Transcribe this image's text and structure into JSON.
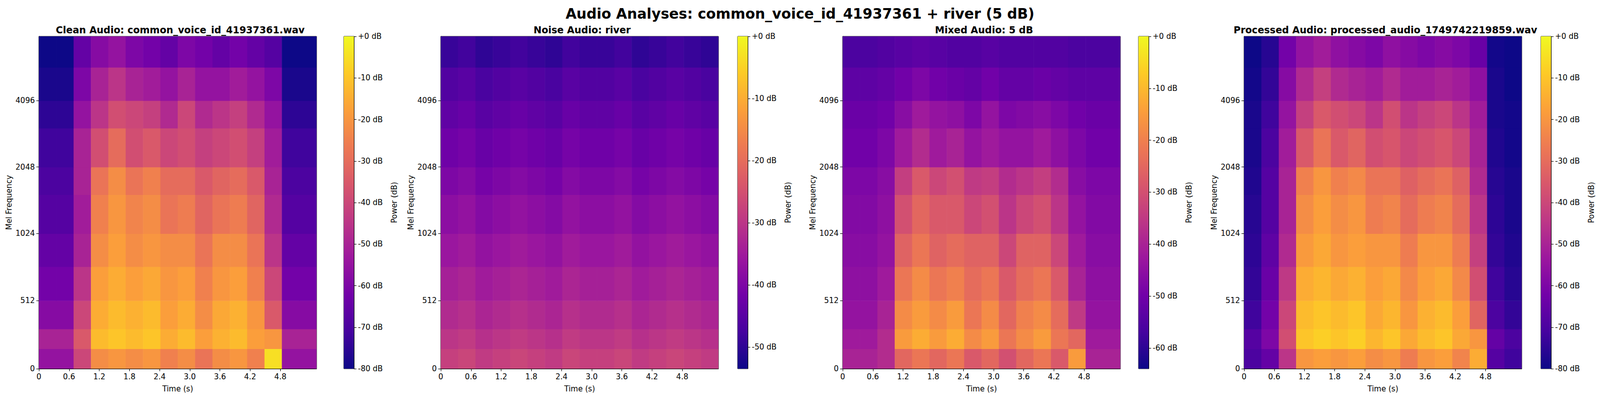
{
  "title": "Audio Analyses: common_voice_id_41937361 + river (5 dB)",
  "chart_data": [
    {
      "type": "heatmap",
      "title": "Clean Audio: common_voice_id_41937361.wav",
      "xlabel": "Time (s)",
      "ylabel": "Mel Frequency",
      "xlim": [
        0,
        5.52
      ],
      "xticks": [
        0,
        0.6,
        1.2,
        1.8,
        2.4,
        {
          "value": 3,
          "label": "3.0"
        },
        3.6,
        4.2,
        4.8
      ],
      "ylim": [
        0,
        8000
      ],
      "yticks": [
        0,
        512,
        1024,
        2048,
        4096
      ],
      "x_edges": [
        0,
        0.345,
        0.69,
        1.035,
        1.38,
        1.725,
        2.07,
        2.415,
        2.76,
        3.105,
        3.45,
        3.795,
        4.14,
        4.485,
        4.83,
        5.175,
        5.52
      ],
      "y_edges": [
        0,
        150,
        300,
        512,
        768,
        1024,
        1536,
        2048,
        3072,
        4096,
        5800,
        8000
      ],
      "cells": [
        [
          -55,
          -55,
          -40,
          -22,
          -20,
          -22,
          -20,
          -25,
          -22,
          -28,
          -22,
          -20,
          -25,
          -5,
          -55,
          -55
        ],
        [
          -50,
          -50,
          -35,
          -12,
          -10,
          -12,
          -10,
          -15,
          -12,
          -18,
          -14,
          -12,
          -18,
          -20,
          -50,
          -50
        ],
        [
          -58,
          -58,
          -40,
          -15,
          -12,
          -14,
          -12,
          -18,
          -15,
          -22,
          -16,
          -14,
          -20,
          -35,
          -58,
          -58
        ],
        [
          -62,
          -62,
          -45,
          -18,
          -15,
          -18,
          -16,
          -20,
          -18,
          -25,
          -20,
          -18,
          -25,
          -40,
          -62,
          -62
        ],
        [
          -65,
          -65,
          -50,
          -22,
          -18,
          -22,
          -20,
          -22,
          -22,
          -28,
          -22,
          -22,
          -28,
          -45,
          -65,
          -65
        ],
        [
          -68,
          -68,
          -52,
          -25,
          -20,
          -24,
          -22,
          -28,
          -26,
          -32,
          -28,
          -26,
          -32,
          -48,
          -68,
          -68
        ],
        [
          -70,
          -70,
          -50,
          -28,
          -22,
          -28,
          -25,
          -30,
          -30,
          -35,
          -32,
          -30,
          -35,
          -50,
          -70,
          -70
        ],
        [
          -72,
          -72,
          -50,
          -38,
          -30,
          -38,
          -35,
          -40,
          -38,
          -42,
          -40,
          -38,
          -42,
          -52,
          -72,
          -72
        ],
        [
          -75,
          -75,
          -55,
          -45,
          -38,
          -40,
          -42,
          -48,
          -40,
          -48,
          -45,
          -42,
          -48,
          -55,
          -75,
          -75
        ],
        [
          -78,
          -78,
          -60,
          -50,
          -45,
          -50,
          -52,
          -55,
          -50,
          -55,
          -55,
          -52,
          -55,
          -60,
          -78,
          -78
        ],
        [
          -80,
          -80,
          -65,
          -58,
          -55,
          -60,
          -62,
          -65,
          -60,
          -62,
          -65,
          -62,
          -65,
          -68,
          -80,
          -80
        ]
      ],
      "colorbar": {
        "label": "Power (dB)",
        "range": [
          -80,
          0
        ],
        "ticks": [
          {
            "value": 0,
            "label": "+0 dB"
          },
          {
            "value": -10,
            "label": "-10 dB"
          },
          {
            "value": -20,
            "label": "-20 dB"
          },
          {
            "value": -30,
            "label": "-30 dB"
          },
          {
            "value": -40,
            "label": "-40 dB"
          },
          {
            "value": -50,
            "label": "-50 dB"
          },
          {
            "value": -60,
            "label": "-60 dB"
          },
          {
            "value": -70,
            "label": "-70 dB"
          },
          {
            "value": -80,
            "label": "-80 dB"
          }
        ]
      }
    },
    {
      "type": "heatmap",
      "title": "Noise Audio: river",
      "xlabel": "Time (s)",
      "ylabel": "Mel Frequency",
      "xlim": [
        0,
        5.52
      ],
      "xticks": [
        0,
        0.6,
        1.2,
        1.8,
        2.4,
        {
          "value": 3,
          "label": "3.0"
        },
        3.6,
        4.2,
        4.8
      ],
      "ylim": [
        0,
        8000
      ],
      "yticks": [
        0,
        512,
        1024,
        2048,
        4096
      ],
      "x_edges": [
        0,
        0.345,
        0.69,
        1.035,
        1.38,
        1.725,
        2.07,
        2.415,
        2.76,
        3.105,
        3.45,
        3.795,
        4.14,
        4.485,
        4.83,
        5.175,
        5.52
      ],
      "y_edges": [
        0,
        150,
        300,
        512,
        768,
        1024,
        1536,
        2048,
        3072,
        4096,
        5800,
        8000
      ],
      "cells": [
        [
          -28,
          -27,
          -29,
          -28,
          -27,
          -28,
          -29,
          -27,
          -28,
          -28,
          -27,
          -29,
          -28,
          -27,
          -28,
          -29
        ],
        [
          -30,
          -29,
          -31,
          -30,
          -29,
          -30,
          -31,
          -29,
          -30,
          -30,
          -29,
          -31,
          -30,
          -29,
          -30,
          -31
        ],
        [
          -32,
          -31,
          -33,
          -32,
          -31,
          -32,
          -33,
          -31,
          -32,
          -32,
          -31,
          -33,
          -32,
          -31,
          -32,
          -33
        ],
        [
          -34,
          -33,
          -35,
          -34,
          -33,
          -34,
          -35,
          -33,
          -34,
          -34,
          -33,
          -35,
          -34,
          -33,
          -34,
          -35
        ],
        [
          -36,
          -35,
          -37,
          -36,
          -35,
          -36,
          -37,
          -35,
          -36,
          -36,
          -35,
          -37,
          -36,
          -35,
          -36,
          -37
        ],
        [
          -38,
          -37,
          -39,
          -38,
          -37,
          -38,
          -39,
          -37,
          -38,
          -38,
          -37,
          -39,
          -38,
          -37,
          -38,
          -39
        ],
        [
          -40,
          -39,
          -41,
          -40,
          -39,
          -40,
          -41,
          -39,
          -40,
          -40,
          -39,
          -41,
          -40,
          -39,
          -40,
          -41
        ],
        [
          -42,
          -41,
          -43,
          -42,
          -41,
          -42,
          -43,
          -41,
          -42,
          -42,
          -41,
          -43,
          -42,
          -41,
          -42,
          -43
        ],
        [
          -44,
          -43,
          -45,
          -44,
          -43,
          -44,
          -45,
          -43,
          -44,
          -44,
          -43,
          -45,
          -44,
          -43,
          -44,
          -45
        ],
        [
          -46,
          -45,
          -47,
          -46,
          -45,
          -46,
          -47,
          -45,
          -46,
          -46,
          -45,
          -47,
          -46,
          -45,
          -46,
          -47
        ],
        [
          -49,
          -48,
          -50,
          -49,
          -48,
          -49,
          -50,
          -48,
          -49,
          -49,
          -48,
          -50,
          -49,
          -48,
          -49,
          -50
        ]
      ],
      "colorbar": {
        "label": "Power (dB)",
        "range": [
          -53.5,
          0
        ],
        "ticks": [
          {
            "value": 0,
            "label": "+0 dB"
          },
          {
            "value": -10,
            "label": "-10 dB"
          },
          {
            "value": -20,
            "label": "-20 dB"
          },
          {
            "value": -30,
            "label": "-30 dB"
          },
          {
            "value": -40,
            "label": "-40 dB"
          },
          {
            "value": -50,
            "label": "-50 dB"
          }
        ]
      }
    },
    {
      "type": "heatmap",
      "title": "Mixed Audio: 5 dB",
      "xlabel": "Time (s)",
      "ylabel": "Mel Frequency",
      "xlim": [
        0,
        5.52
      ],
      "xticks": [
        0,
        0.6,
        1.2,
        1.8,
        2.4,
        {
          "value": 3,
          "label": "3.0"
        },
        3.6,
        4.2,
        4.8
      ],
      "ylim": [
        0,
        8000
      ],
      "yticks": [
        0,
        512,
        1024,
        2048,
        4096
      ],
      "x_edges": [
        0,
        0.345,
        0.69,
        1.035,
        1.38,
        1.725,
        2.07,
        2.415,
        2.76,
        3.105,
        3.45,
        3.795,
        4.14,
        4.485,
        4.83,
        5.175,
        5.52
      ],
      "y_edges": [
        0,
        150,
        300,
        512,
        768,
        1024,
        1536,
        2048,
        3072,
        4096,
        5800,
        8000
      ],
      "cells": [
        [
          -40,
          -40,
          -38,
          -25,
          -22,
          -25,
          -22,
          -28,
          -25,
          -30,
          -25,
          -22,
          -28,
          -15,
          -40,
          -40
        ],
        [
          -42,
          -42,
          -38,
          -15,
          -12,
          -15,
          -12,
          -18,
          -15,
          -22,
          -18,
          -15,
          -22,
          -25,
          -42,
          -42
        ],
        [
          -44,
          -44,
          -40,
          -18,
          -15,
          -18,
          -15,
          -22,
          -18,
          -25,
          -20,
          -18,
          -24,
          -35,
          -44,
          -44
        ],
        [
          -45,
          -45,
          -42,
          -22,
          -18,
          -22,
          -20,
          -24,
          -22,
          -28,
          -24,
          -22,
          -28,
          -40,
          -45,
          -45
        ],
        [
          -46,
          -46,
          -44,
          -26,
          -22,
          -26,
          -24,
          -26,
          -26,
          -32,
          -26,
          -26,
          -32,
          -42,
          -46,
          -46
        ],
        [
          -47,
          -47,
          -45,
          -30,
          -25,
          -28,
          -28,
          -32,
          -30,
          -36,
          -32,
          -30,
          -36,
          -44,
          -47,
          -47
        ],
        [
          -48,
          -48,
          -46,
          -34,
          -28,
          -32,
          -30,
          -35,
          -34,
          -38,
          -36,
          -34,
          -38,
          -46,
          -48,
          -48
        ],
        [
          -50,
          -50,
          -48,
          -42,
          -38,
          -42,
          -40,
          -44,
          -42,
          -44,
          -44,
          -42,
          -45,
          -48,
          -50,
          -50
        ],
        [
          -51,
          -51,
          -50,
          -46,
          -42,
          -44,
          -45,
          -48,
          -44,
          -48,
          -47,
          -46,
          -48,
          -50,
          -51,
          -51
        ],
        [
          -53,
          -53,
          -52,
          -50,
          -48,
          -50,
          -51,
          -52,
          -50,
          -52,
          -52,
          -51,
          -52,
          -53,
          -53,
          -53
        ],
        [
          -56,
          -56,
          -55,
          -54,
          -53,
          -54,
          -55,
          -55,
          -54,
          -55,
          -55,
          -55,
          -55,
          -56,
          -56,
          -56
        ]
      ],
      "colorbar": {
        "label": "Power (dB)",
        "range": [
          -64,
          0
        ],
        "ticks": [
          {
            "value": 0,
            "label": "+0 dB"
          },
          {
            "value": -10,
            "label": "-10 dB"
          },
          {
            "value": -20,
            "label": "-20 dB"
          },
          {
            "value": -30,
            "label": "-30 dB"
          },
          {
            "value": -40,
            "label": "-40 dB"
          },
          {
            "value": -50,
            "label": "-50 dB"
          },
          {
            "value": -60,
            "label": "-60 dB"
          }
        ]
      }
    },
    {
      "type": "heatmap",
      "title": "Processed Audio: processed_audio_1749742219859.wav",
      "xlabel": "Time (s)",
      "ylabel": "Mel Frequency",
      "xlim": [
        0,
        5.52
      ],
      "xticks": [
        0,
        0.6,
        1.2,
        1.8,
        2.4,
        {
          "value": 3,
          "label": "3.0"
        },
        3.6,
        4.2,
        4.8
      ],
      "ylim": [
        0,
        8000
      ],
      "yticks": [
        0,
        512,
        1024,
        2048,
        4096
      ],
      "x_edges": [
        0,
        0.345,
        0.69,
        1.035,
        1.38,
        1.725,
        2.07,
        2.415,
        2.76,
        3.105,
        3.45,
        3.795,
        4.14,
        4.485,
        4.83,
        5.175,
        5.52
      ],
      "y_edges": [
        0,
        150,
        300,
        512,
        768,
        1024,
        1536,
        2048,
        3072,
        4096,
        5800,
        8000
      ],
      "cells": [
        [
          -70,
          -65,
          -45,
          -20,
          -18,
          -20,
          -18,
          -22,
          -20,
          -26,
          -20,
          -18,
          -24,
          -15,
          -68,
          -72
        ],
        [
          -68,
          -60,
          -38,
          -10,
          -8,
          -10,
          -8,
          -13,
          -10,
          -16,
          -12,
          -10,
          -16,
          -20,
          -65,
          -70
        ],
        [
          -72,
          -62,
          -40,
          -12,
          -10,
          -12,
          -10,
          -16,
          -13,
          -20,
          -14,
          -12,
          -18,
          -32,
          -70,
          -74
        ],
        [
          -74,
          -64,
          -44,
          -15,
          -13,
          -16,
          -14,
          -18,
          -16,
          -23,
          -18,
          -16,
          -23,
          -38,
          -72,
          -76
        ],
        [
          -75,
          -66,
          -48,
          -19,
          -16,
          -20,
          -18,
          -20,
          -20,
          -26,
          -20,
          -20,
          -26,
          -42,
          -74,
          -77
        ],
        [
          -76,
          -68,
          -50,
          -22,
          -18,
          -22,
          -20,
          -26,
          -24,
          -30,
          -26,
          -24,
          -30,
          -45,
          -75,
          -78
        ],
        [
          -77,
          -68,
          -50,
          -25,
          -20,
          -25,
          -23,
          -28,
          -28,
          -33,
          -30,
          -28,
          -33,
          -48,
          -76,
          -78
        ],
        [
          -78,
          -70,
          -52,
          -35,
          -28,
          -35,
          -32,
          -38,
          -36,
          -40,
          -38,
          -36,
          -40,
          -50,
          -77,
          -79
        ],
        [
          -78,
          -72,
          -55,
          -42,
          -35,
          -38,
          -40,
          -45,
          -38,
          -45,
          -42,
          -40,
          -45,
          -52,
          -78,
          -79
        ],
        [
          -79,
          -74,
          -58,
          -48,
          -42,
          -48,
          -50,
          -52,
          -48,
          -52,
          -52,
          -50,
          -52,
          -56,
          -78,
          -80
        ],
        [
          -80,
          -76,
          -62,
          -55,
          -52,
          -56,
          -58,
          -60,
          -56,
          -58,
          -60,
          -58,
          -60,
          -64,
          -79,
          -80
        ]
      ],
      "colorbar": {
        "label": "Power (dB)",
        "range": [
          -80,
          0
        ],
        "ticks": [
          {
            "value": 0,
            "label": "+0 dB"
          },
          {
            "value": -10,
            "label": "-10 dB"
          },
          {
            "value": -20,
            "label": "-20 dB"
          },
          {
            "value": -30,
            "label": "-30 dB"
          },
          {
            "value": -40,
            "label": "-40 dB"
          },
          {
            "value": -50,
            "label": "-50 dB"
          },
          {
            "value": -60,
            "label": "-60 dB"
          },
          {
            "value": -70,
            "label": "-70 dB"
          },
          {
            "value": -80,
            "label": "-80 dB"
          }
        ]
      }
    }
  ]
}
